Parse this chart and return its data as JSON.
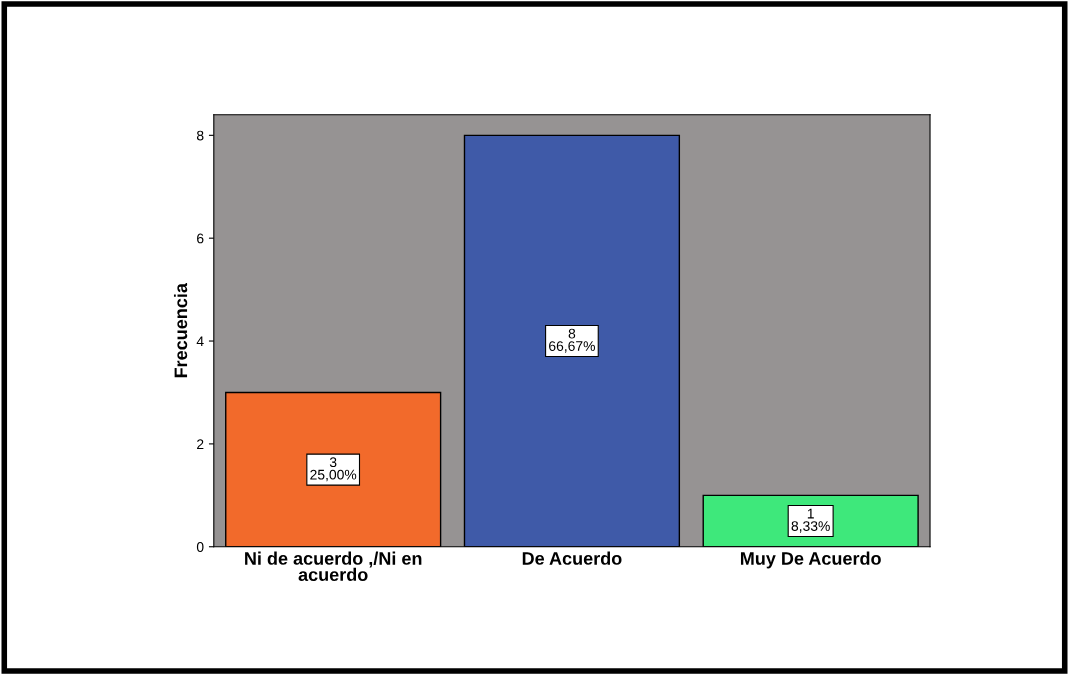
{
  "chart_data": {
    "type": "bar",
    "ylabel": "Frecuencia",
    "categories": [
      "Ni de acuerdo ,/Ni en\nacuerdo",
      "De Acuerdo",
      "Muy De Acuerdo"
    ],
    "values": [
      3,
      8,
      1
    ],
    "colors": [
      "#f26a2b",
      "#3f5aa8",
      "#3ee87b"
    ],
    "value_labels": [
      "3\n25,00%",
      "8\n66,67%",
      "1\n8,33%"
    ],
    "ylim": [
      0,
      8.4
    ],
    "yticks": [
      0,
      2,
      4,
      6,
      8
    ],
    "grid": false,
    "legend": false
  }
}
